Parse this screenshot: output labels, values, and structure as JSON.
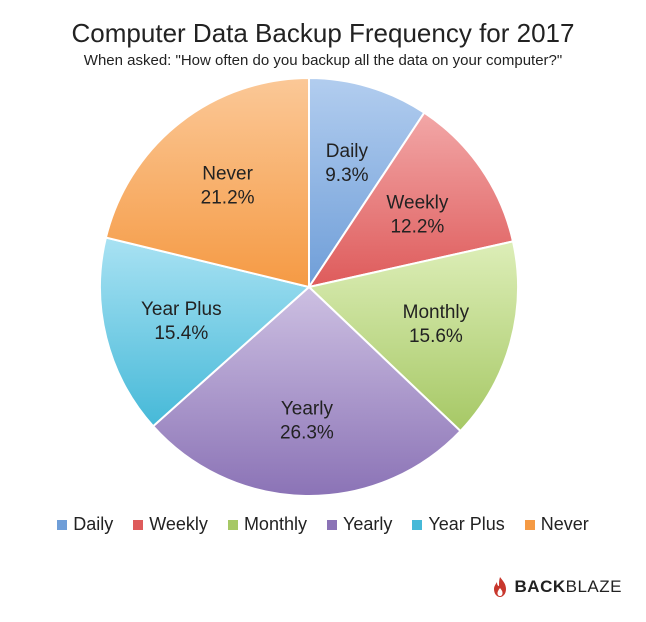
{
  "chart_data": {
    "type": "pie",
    "title": "Computer Data Backup Frequency for 2017",
    "subtitle": "When asked: \"How often do you backup all the data on your computer?\"",
    "categories": [
      "Daily",
      "Weekly",
      "Monthly",
      "Yearly",
      "Year Plus",
      "Never"
    ],
    "values": [
      9.3,
      12.2,
      15.6,
      26.3,
      15.4,
      21.2
    ],
    "value_labels": [
      "9.3%",
      "12.2%",
      "15.6%",
      "26.3%",
      "15.4%",
      "21.2%"
    ],
    "colors": [
      "#6f9ed8",
      "#de5b5b",
      "#a6c865",
      "#8b73b6",
      "#46b9d8",
      "#f59a44"
    ],
    "light_colors": [
      "#b2cdef",
      "#f2a7a7",
      "#ddeeb8",
      "#cdc0e2",
      "#a9e2f3",
      "#fbc897"
    ],
    "legend_position": "bottom",
    "start_angle": "top, clockwise"
  },
  "brand": {
    "logo_icon": "flame-icon",
    "name_bold": "BACK",
    "name_light": "BLAZE",
    "color": "#c8372d"
  }
}
